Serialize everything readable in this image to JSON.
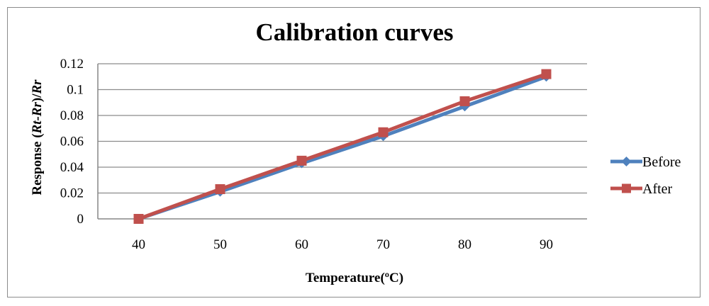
{
  "chart_data": {
    "type": "line",
    "title": "Calibration curves",
    "xlabel": "Temperature(ºC)",
    "ylabel_parts": [
      "Response (",
      "Rt-Rr",
      ")/",
      "Rr"
    ],
    "categories": [
      40,
      50,
      60,
      70,
      80,
      90
    ],
    "ylim": [
      0,
      0.12
    ],
    "yticks": [
      0,
      0.02,
      0.04,
      0.06,
      0.08,
      0.1,
      0.12
    ],
    "ytick_labels": [
      "0",
      "0.02",
      "0.04",
      "0.06",
      "0.08",
      "0.1",
      "0.12"
    ],
    "grid": true,
    "legend_position": "right",
    "series": [
      {
        "name": "Before",
        "marker": "diamond",
        "color": "#4f81bd",
        "values": [
          0,
          0.021,
          0.043,
          0.064,
          0.087,
          0.11
        ]
      },
      {
        "name": "After",
        "marker": "square",
        "color": "#c0504d",
        "values": [
          0,
          0.023,
          0.045,
          0.067,
          0.091,
          0.112
        ]
      }
    ]
  }
}
